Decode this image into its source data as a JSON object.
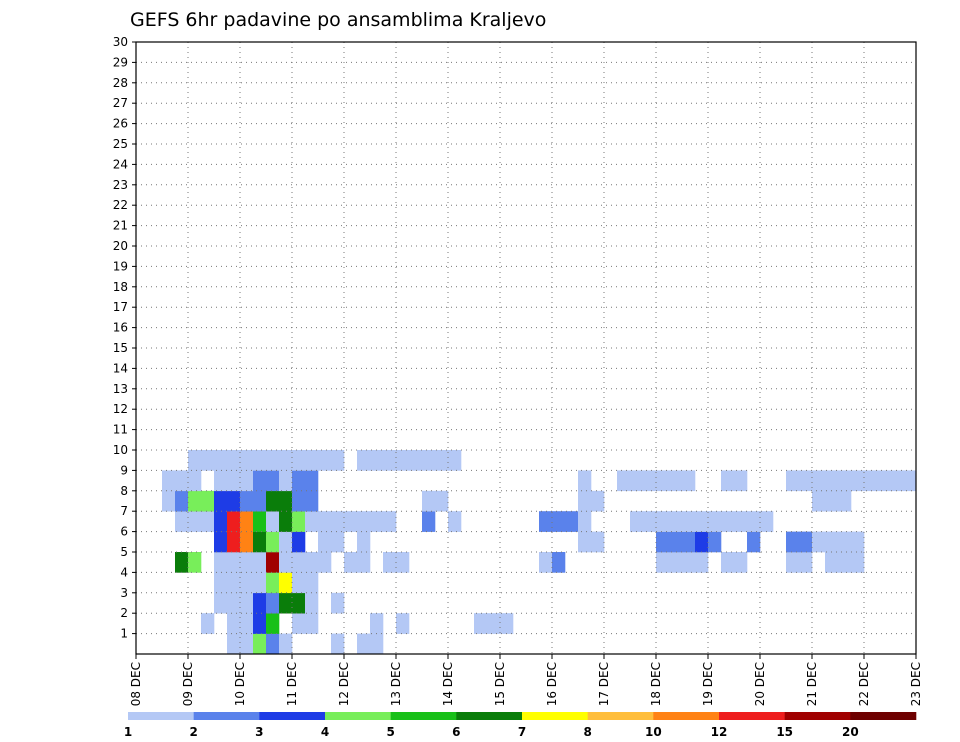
{
  "chart_data": {
    "type": "heatmap",
    "title": "GEFS 6hr padavine po ansamblima Kraljevo",
    "x_tick_labels": [
      "08 DEC",
      "09 DEC",
      "10 DEC",
      "11 DEC",
      "12 DEC",
      "13 DEC",
      "14 DEC",
      "15 DEC",
      "16 DEC",
      "17 DEC",
      "18 DEC",
      "19 DEC",
      "20 DEC",
      "21 DEC",
      "22 DEC",
      "23 DEC"
    ],
    "y_tick_labels": [
      "1",
      "2",
      "3",
      "4",
      "5",
      "6",
      "7",
      "8",
      "9",
      "10",
      "11",
      "12",
      "13",
      "14",
      "15",
      "16",
      "17",
      "18",
      "19",
      "20",
      "21",
      "22",
      "23",
      "24",
      "25",
      "26",
      "27",
      "28",
      "29",
      "30"
    ],
    "xlim": [
      0,
      60
    ],
    "ylim": [
      0,
      30
    ],
    "x_step_hours": 6,
    "grid": true,
    "legend": {
      "position": "bottom",
      "labels": [
        "1",
        "2",
        "3",
        "4",
        "5",
        "6",
        "7",
        "8",
        "10",
        "12",
        "15",
        "20"
      ],
      "colors": [
        "#b4c8f5",
        "#5a82eb",
        "#1e3ce6",
        "#78ee5a",
        "#18c018",
        "#0a7d0a",
        "#ffff00",
        "#ffbe3c",
        "#ff8214",
        "#ee1e1e",
        "#a00000",
        "#6e0000"
      ]
    },
    "colors": [
      "#b4c8f5",
      "#5a82eb",
      "#1e3ce6",
      "#78ee5a",
      "#18c018",
      "#0a7d0a",
      "#ffff00",
      "#ffbe3c",
      "#ff8214",
      "#ee1e1e",
      "#a00000",
      "#6e0000"
    ],
    "cells": [
      [
        7,
        1,
        1
      ],
      [
        8,
        1,
        1
      ],
      [
        9,
        1,
        4
      ],
      [
        10,
        1,
        2
      ],
      [
        11,
        1,
        1
      ],
      [
        15,
        1,
        1
      ],
      [
        17,
        1,
        1
      ],
      [
        18,
        1,
        1
      ],
      [
        5,
        2,
        1
      ],
      [
        7,
        2,
        1
      ],
      [
        8,
        2,
        1
      ],
      [
        9,
        2,
        3
      ],
      [
        10,
        2,
        5
      ],
      [
        12,
        2,
        1
      ],
      [
        13,
        2,
        1
      ],
      [
        18,
        2,
        1
      ],
      [
        20,
        2,
        1
      ],
      [
        26,
        2,
        1
      ],
      [
        27,
        2,
        1
      ],
      [
        28,
        2,
        1
      ],
      [
        6,
        3,
        1
      ],
      [
        7,
        3,
        1
      ],
      [
        8,
        3,
        1
      ],
      [
        9,
        3,
        3
      ],
      [
        10,
        3,
        2
      ],
      [
        11,
        3,
        6
      ],
      [
        12,
        3,
        6
      ],
      [
        13,
        3,
        1
      ],
      [
        15,
        3,
        1
      ],
      [
        6,
        4,
        1
      ],
      [
        7,
        4,
        1
      ],
      [
        8,
        4,
        1
      ],
      [
        9,
        4,
        1
      ],
      [
        10,
        4,
        4
      ],
      [
        11,
        4,
        7
      ],
      [
        12,
        4,
        1
      ],
      [
        13,
        4,
        1
      ],
      [
        3,
        5,
        6
      ],
      [
        4,
        5,
        4
      ],
      [
        6,
        5,
        1
      ],
      [
        7,
        5,
        1
      ],
      [
        8,
        5,
        1
      ],
      [
        9,
        5,
        1
      ],
      [
        10,
        5,
        11
      ],
      [
        11,
        5,
        1
      ],
      [
        12,
        5,
        1
      ],
      [
        13,
        5,
        1
      ],
      [
        14,
        5,
        1
      ],
      [
        16,
        5,
        1
      ],
      [
        17,
        5,
        1
      ],
      [
        19,
        5,
        1
      ],
      [
        20,
        5,
        1
      ],
      [
        31,
        5,
        1
      ],
      [
        32,
        5,
        2
      ],
      [
        40,
        5,
        1
      ],
      [
        41,
        5,
        1
      ],
      [
        42,
        5,
        1
      ],
      [
        43,
        5,
        1
      ],
      [
        45,
        5,
        1
      ],
      [
        46,
        5,
        1
      ],
      [
        50,
        5,
        1
      ],
      [
        51,
        5,
        1
      ],
      [
        53,
        5,
        1
      ],
      [
        54,
        5,
        1
      ],
      [
        55,
        5,
        1
      ],
      [
        6,
        6,
        3
      ],
      [
        7,
        6,
        10
      ],
      [
        8,
        6,
        9
      ],
      [
        9,
        6,
        6
      ],
      [
        10,
        6,
        4
      ],
      [
        11,
        6,
        1
      ],
      [
        12,
        6,
        3
      ],
      [
        14,
        6,
        1
      ],
      [
        15,
        6,
        1
      ],
      [
        17,
        6,
        1
      ],
      [
        34,
        6,
        1
      ],
      [
        35,
        6,
        1
      ],
      [
        40,
        6,
        2
      ],
      [
        41,
        6,
        2
      ],
      [
        42,
        6,
        2
      ],
      [
        43,
        6,
        3
      ],
      [
        44,
        6,
        2
      ],
      [
        47,
        6,
        2
      ],
      [
        50,
        6,
        2
      ],
      [
        51,
        6,
        2
      ],
      [
        52,
        6,
        1
      ],
      [
        53,
        6,
        1
      ],
      [
        54,
        6,
        1
      ],
      [
        55,
        6,
        1
      ],
      [
        3,
        7,
        1
      ],
      [
        4,
        7,
        1
      ],
      [
        5,
        7,
        1
      ],
      [
        6,
        7,
        3
      ],
      [
        7,
        7,
        10
      ],
      [
        8,
        7,
        9
      ],
      [
        9,
        7,
        5
      ],
      [
        10,
        7,
        1
      ],
      [
        11,
        7,
        6
      ],
      [
        12,
        7,
        4
      ],
      [
        13,
        7,
        1
      ],
      [
        14,
        7,
        1
      ],
      [
        15,
        7,
        1
      ],
      [
        16,
        7,
        1
      ],
      [
        17,
        7,
        1
      ],
      [
        18,
        7,
        1
      ],
      [
        19,
        7,
        1
      ],
      [
        22,
        7,
        2
      ],
      [
        24,
        7,
        1
      ],
      [
        31,
        7,
        2
      ],
      [
        32,
        7,
        2
      ],
      [
        33,
        7,
        2
      ],
      [
        34,
        7,
        1
      ],
      [
        38,
        7,
        1
      ],
      [
        39,
        7,
        1
      ],
      [
        40,
        7,
        1
      ],
      [
        41,
        7,
        1
      ],
      [
        42,
        7,
        1
      ],
      [
        43,
        7,
        1
      ],
      [
        44,
        7,
        1
      ],
      [
        45,
        7,
        1
      ],
      [
        46,
        7,
        1
      ],
      [
        47,
        7,
        1
      ],
      [
        48,
        7,
        1
      ],
      [
        2,
        8,
        1
      ],
      [
        3,
        8,
        2
      ],
      [
        4,
        8,
        4
      ],
      [
        5,
        8,
        4
      ],
      [
        6,
        8,
        3
      ],
      [
        7,
        8,
        3
      ],
      [
        8,
        8,
        2
      ],
      [
        9,
        8,
        2
      ],
      [
        10,
        8,
        6
      ],
      [
        11,
        8,
        6
      ],
      [
        12,
        8,
        2
      ],
      [
        13,
        8,
        2
      ],
      [
        22,
        8,
        1
      ],
      [
        23,
        8,
        1
      ],
      [
        34,
        8,
        1
      ],
      [
        35,
        8,
        1
      ],
      [
        52,
        8,
        1
      ],
      [
        53,
        8,
        1
      ],
      [
        54,
        8,
        1
      ],
      [
        2,
        9,
        1
      ],
      [
        3,
        9,
        1
      ],
      [
        4,
        9,
        1
      ],
      [
        6,
        9,
        1
      ],
      [
        7,
        9,
        1
      ],
      [
        8,
        9,
        1
      ],
      [
        9,
        9,
        2
      ],
      [
        10,
        9,
        2
      ],
      [
        11,
        9,
        1
      ],
      [
        12,
        9,
        2
      ],
      [
        13,
        9,
        2
      ],
      [
        34,
        9,
        1
      ],
      [
        37,
        9,
        1
      ],
      [
        38,
        9,
        1
      ],
      [
        39,
        9,
        1
      ],
      [
        40,
        9,
        1
      ],
      [
        41,
        9,
        1
      ],
      [
        42,
        9,
        1
      ],
      [
        45,
        9,
        1
      ],
      [
        46,
        9,
        1
      ],
      [
        50,
        9,
        1
      ],
      [
        51,
        9,
        1
      ],
      [
        52,
        9,
        1
      ],
      [
        53,
        9,
        1
      ],
      [
        54,
        9,
        1
      ],
      [
        55,
        9,
        1
      ],
      [
        56,
        9,
        1
      ],
      [
        57,
        9,
        1
      ],
      [
        58,
        9,
        1
      ],
      [
        59,
        9,
        1
      ],
      [
        4,
        10,
        1
      ],
      [
        5,
        10,
        1
      ],
      [
        6,
        10,
        1
      ],
      [
        7,
        10,
        1
      ],
      [
        8,
        10,
        1
      ],
      [
        9,
        10,
        1
      ],
      [
        10,
        10,
        1
      ],
      [
        11,
        10,
        1
      ],
      [
        12,
        10,
        1
      ],
      [
        13,
        10,
        1
      ],
      [
        14,
        10,
        1
      ],
      [
        15,
        10,
        1
      ],
      [
        17,
        10,
        1
      ],
      [
        18,
        10,
        1
      ],
      [
        19,
        10,
        1
      ],
      [
        20,
        10,
        1
      ],
      [
        21,
        10,
        1
      ],
      [
        22,
        10,
        1
      ],
      [
        23,
        10,
        1
      ],
      [
        24,
        10,
        1
      ]
    ]
  }
}
